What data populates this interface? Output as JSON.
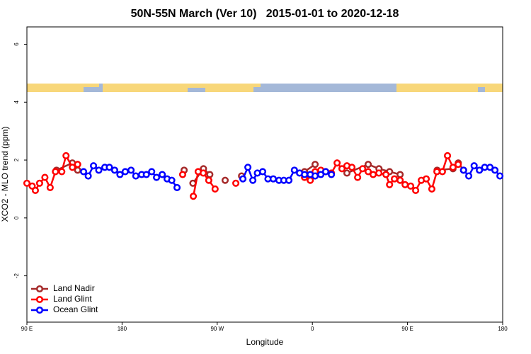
{
  "chart_data": {
    "type": "line",
    "title": "50N-55N March (Ver 10)   2015-01-01 to 2020-12-18",
    "xlabel": "Longitude",
    "ylabel": "XCO2 - MLO trend (ppm)",
    "xlim": [
      90,
      540
    ],
    "xticks": [
      {
        "value": 90,
        "label": "90 E"
      },
      {
        "value": 180,
        "label": "180"
      },
      {
        "value": 270,
        "label": "90 W"
      },
      {
        "value": 360,
        "label": "0"
      },
      {
        "value": 450,
        "label": "90 E"
      },
      {
        "value": 540,
        "label": "180"
      }
    ],
    "ylim": [
      -3.6,
      6.6
    ],
    "yticks": [
      -2,
      0,
      2,
      4,
      6
    ],
    "grid": false,
    "legend": "lower left",
    "series": [
      {
        "name": "Land Nadir",
        "color": "#a52a2a",
        "x": [
          118,
          133,
          138,
          null,
          238.7,
          null,
          247,
          257,
          263,
          null,
          277.5,
          null,
          293,
          null,
          352.6,
          362.6,
          null,
          392.7,
          412.8,
          423,
          433,
          443,
          null,
          478,
          493,
          498,
          503
        ],
        "values": [
          1.65,
          1.9,
          1.65,
          null,
          1.65,
          null,
          1.2,
          1.7,
          1.5,
          null,
          1.3,
          null,
          1.45,
          null,
          1.6,
          1.85,
          null,
          1.55,
          1.85,
          1.7,
          1.6,
          1.5,
          null,
          1.65,
          1.7,
          1.9,
          1.65
        ]
      },
      {
        "name": "Land Glint",
        "color": "#ff0000",
        "x": [
          90,
          95,
          98,
          102,
          107,
          112,
          117,
          123,
          127,
          133,
          138,
          null,
          237.3,
          null,
          247.4,
          252,
          256.8,
          262,
          268,
          null,
          287.6,
          null,
          352.6,
          358,
          362.6,
          368,
          372.6,
          378,
          383.4,
          388,
          392.7,
          397.4,
          402.8,
          407.5,
          412.8,
          417.5,
          422.9,
          429.6,
          433,
          437.6,
          443,
          447.7,
          453,
          457.7,
          463,
          467.7,
          473,
          477.8,
          483,
          487.8,
          493,
          497.9
        ],
        "values": [
          1.2,
          1.1,
          0.95,
          1.2,
          1.4,
          1.05,
          1.6,
          1.6,
          2.15,
          1.75,
          1.85,
          null,
          1.5,
          null,
          0.75,
          1.6,
          1.55,
          1.3,
          1.0,
          null,
          1.2,
          null,
          1.4,
          1.3,
          1.6,
          1.65,
          1.6,
          1.55,
          1.9,
          1.7,
          1.8,
          1.75,
          1.4,
          1.7,
          1.6,
          1.5,
          1.55,
          1.5,
          1.15,
          1.35,
          1.3,
          1.15,
          1.1,
          0.95,
          1.3,
          1.35,
          1.0,
          1.6,
          1.6,
          2.15,
          1.75,
          1.85
        ]
      },
      {
        "name": "Ocean Glint",
        "color": "#0000ff",
        "x": [
          143.6,
          148,
          153,
          158,
          163.7,
          168,
          173,
          178,
          183,
          188.5,
          193,
          198.5,
          203,
          208,
          212.6,
          218,
          222.6,
          227,
          232,
          null,
          294.3,
          299,
          303.7,
          308,
          313,
          318,
          323,
          328.4,
          333,
          337.8,
          343,
          347.9,
          352.6,
          358,
          362.6,
          368,
          372.6,
          378,
          null,
          503,
          507.9,
          513,
          518,
          523,
          528,
          532.7,
          537.4
        ],
        "values": [
          1.6,
          1.45,
          1.8,
          1.65,
          1.75,
          1.75,
          1.65,
          1.5,
          1.6,
          1.65,
          1.45,
          1.5,
          1.5,
          1.6,
          1.4,
          1.5,
          1.35,
          1.3,
          1.05,
          null,
          1.35,
          1.75,
          1.3,
          1.55,
          1.6,
          1.35,
          1.35,
          1.3,
          1.3,
          1.3,
          1.65,
          1.55,
          1.5,
          1.5,
          1.45,
          1.5,
          1.6,
          1.5,
          null,
          1.65,
          1.45,
          1.8,
          1.65,
          1.75,
          1.75,
          1.65,
          1.45
        ]
      }
    ]
  }
}
